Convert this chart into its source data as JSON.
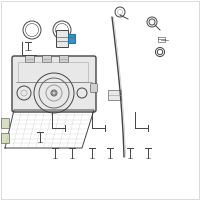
{
  "bg": "#ffffff",
  "border": "#cccccc",
  "lc": "#999999",
  "dc": "#444444",
  "mc": "#666666",
  "hc": "#3a8fc0",
  "fill_light": "#e8e8e8",
  "fill_green": "#d4e0c0",
  "fill_mid": "#d0d0d0"
}
